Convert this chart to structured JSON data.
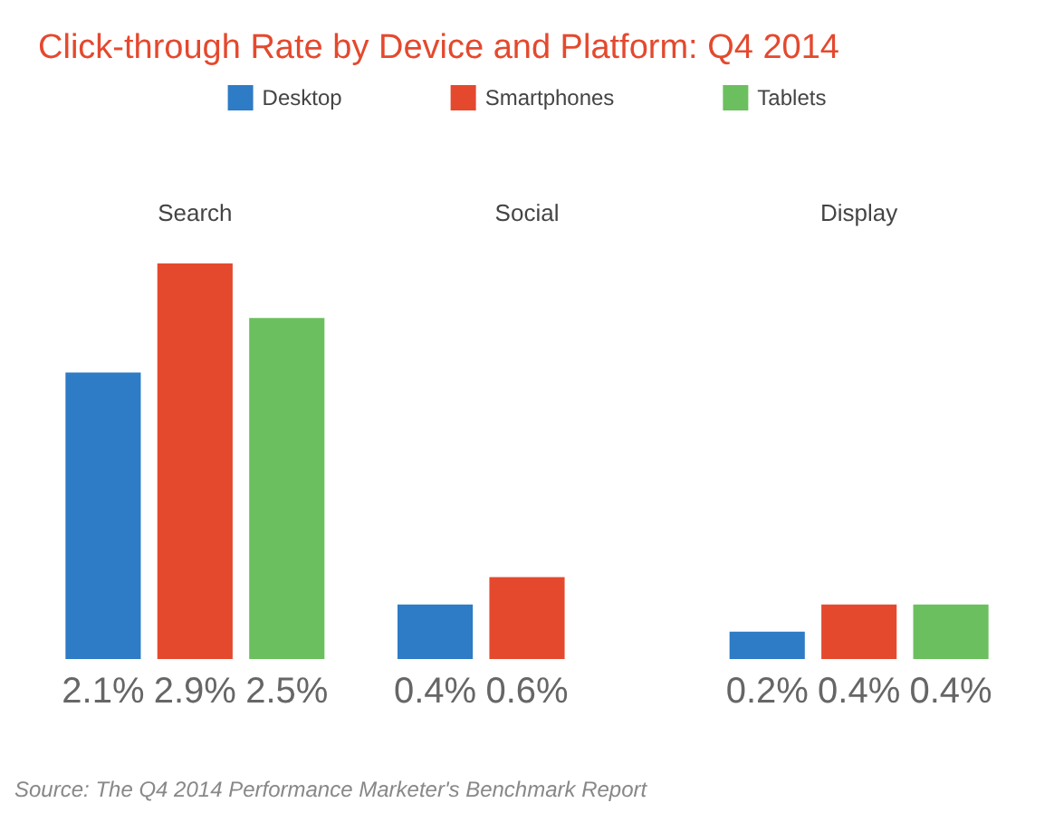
{
  "chart_data": {
    "type": "bar",
    "title": "Click-through Rate by Device and Platform: Q4 2014",
    "categories": [
      "Search",
      "Social",
      "Display"
    ],
    "series": [
      {
        "name": "Desktop",
        "color": "#2e7bc6",
        "values": [
          2.1,
          0.4,
          0.2
        ],
        "value_labels": [
          "2.1%",
          "0.4%",
          "0.2%"
        ]
      },
      {
        "name": "Smartphones",
        "color": "#e4492e",
        "values": [
          2.9,
          0.6,
          0.4
        ],
        "value_labels": [
          "2.9%",
          "0.6%",
          "0.4%"
        ]
      },
      {
        "name": "Tablets",
        "color": "#6cbf5e",
        "values": [
          2.5,
          null,
          0.4
        ],
        "value_labels": [
          "2.5%",
          null,
          "0.4%"
        ]
      }
    ],
    "legend": "top",
    "annotations": [
      "Source: The Q4 2014 Performance Marketer's Benchmark Report"
    ]
  }
}
